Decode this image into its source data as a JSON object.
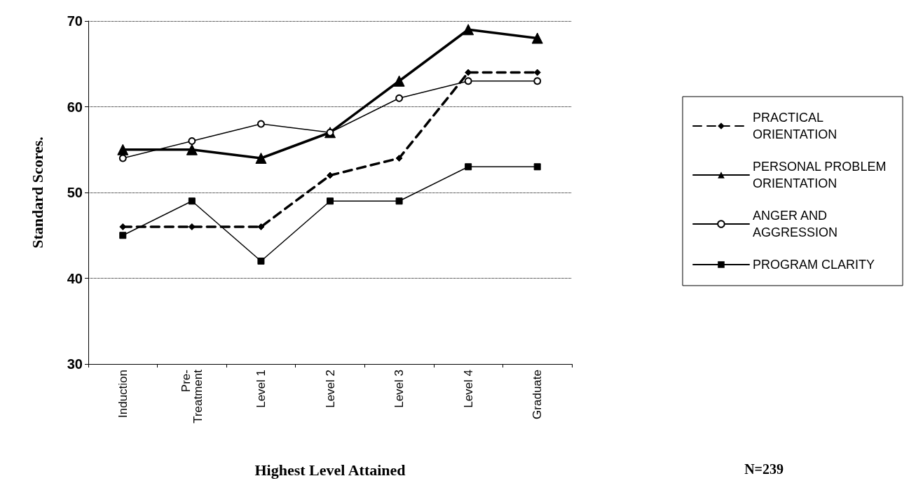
{
  "chart_data": {
    "type": "line",
    "xlabel": "Highest Level Attained",
    "ylabel": "Standard Scores.",
    "categories": [
      "Induction",
      "Pre-Treatment",
      "Level 1",
      "Level 2",
      "Level 3",
      "Level 4",
      "Graduate"
    ],
    "series": [
      {
        "name": "PRACTICAL ORIENTATION",
        "color": "#000000",
        "marker": "diamond",
        "line_style": "dashed",
        "values": [
          46,
          46,
          46,
          52,
          54,
          64,
          64
        ]
      },
      {
        "name": "PERSONAL PROBLEM ORIENTATION",
        "color": "#000000",
        "marker": "triangle",
        "line_style": "solid",
        "values": [
          55,
          55,
          54,
          57,
          63,
          69,
          68
        ]
      },
      {
        "name": "ANGER AND AGGRESSION",
        "color": "#000000",
        "marker": "circle",
        "line_style": "solid",
        "values": [
          54,
          56,
          58,
          57,
          61,
          63,
          63
        ]
      },
      {
        "name": "PROGRAM CLARITY",
        "color": "#000000",
        "marker": "square",
        "line_style": "solid",
        "values": [
          45,
          49,
          42,
          49,
          49,
          53,
          53
        ]
      }
    ],
    "ylim": [
      30,
      70
    ],
    "yticks": [
      30,
      40,
      50,
      60,
      70
    ],
    "grid": "y",
    "legend": "right",
    "annotations": [
      "N=239"
    ]
  }
}
